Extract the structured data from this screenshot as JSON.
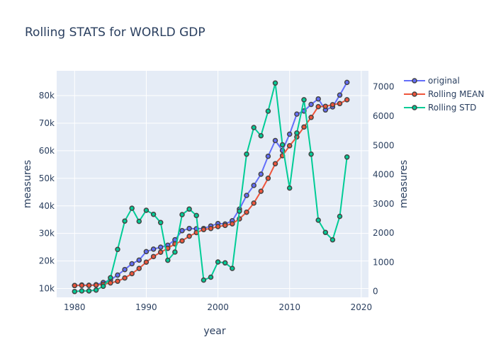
{
  "chart_data": {
    "type": "line",
    "title": "Rolling STATS for WORLD GDP",
    "xlabel": "year",
    "ylabel": "measures",
    "y2label": "measures",
    "xlim": [
      1977.5,
      2021
    ],
    "ylim": [
      6800,
      89000
    ],
    "y2lim": [
      -200,
      7550
    ],
    "x_ticks": [
      1980,
      1990,
      2000,
      2010,
      2020
    ],
    "y_ticks": [
      10000,
      20000,
      30000,
      40000,
      50000,
      60000,
      70000,
      80000
    ],
    "y_tick_labels": [
      "10k",
      "20k",
      "30k",
      "40k",
      "50k",
      "60k",
      "70k",
      "80k"
    ],
    "y2_ticks": [
      0,
      1000,
      2000,
      3000,
      4000,
      5000,
      6000,
      7000
    ],
    "y2_tick_labels": [
      "0",
      "1000",
      "2000",
      "3000",
      "4000",
      "5000",
      "6000",
      "7000"
    ],
    "grid": true,
    "legend_position": "top-right",
    "x": [
      1980,
      1981,
      1982,
      1983,
      1984,
      1985,
      1986,
      1987,
      1988,
      1989,
      1990,
      1991,
      1992,
      1993,
      1994,
      1995,
      1996,
      1997,
      1998,
      1999,
      2000,
      2001,
      2002,
      2003,
      2004,
      2005,
      2006,
      2007,
      2008,
      2009,
      2010,
      2011,
      2012,
      2013,
      2014,
      2015,
      2016,
      2017,
      2018
    ],
    "series": [
      {
        "name": "original",
        "axis": "y",
        "color": "#636efa",
        "values": [
          11100,
          11300,
          11200,
          11400,
          12200,
          13100,
          14900,
          16900,
          19000,
          20300,
          23400,
          24300,
          25000,
          25700,
          27700,
          31000,
          31800,
          31700,
          31800,
          32700,
          33600,
          33400,
          34600,
          38800,
          43800,
          47400,
          51500,
          58000,
          63700,
          60100,
          66000,
          73300,
          74400,
          76800,
          78800,
          74800,
          75900,
          80200,
          84800
        ]
      },
      {
        "name": "Rolling MEAN",
        "axis": "y",
        "color": "#ef553b",
        "values": [
          11100,
          11150,
          11150,
          11250,
          11550,
          12050,
          12650,
          13850,
          15400,
          17300,
          19600,
          21600,
          23200,
          24600,
          26200,
          27300,
          29000,
          30300,
          31400,
          31800,
          32500,
          32900,
          33500,
          35300,
          37700,
          41000,
          45300,
          50000,
          55300,
          58200,
          61800,
          65000,
          68600,
          72100,
          76000,
          76100,
          76700,
          77100,
          78500
        ]
      },
      {
        "name": "Rolling STD",
        "axis": "y2",
        "color": "#00cc96",
        "values": [
          0,
          20,
          20,
          50,
          180,
          470,
          1440,
          2410,
          2850,
          2400,
          2780,
          2640,
          2360,
          1070,
          1350,
          2630,
          2820,
          2600,
          390,
          490,
          1010,
          980,
          790,
          2750,
          4700,
          5610,
          5330,
          6170,
          7130,
          5020,
          3540,
          5420,
          6560,
          4700,
          2440,
          2020,
          1770,
          2570,
          4600
        ]
      }
    ]
  }
}
